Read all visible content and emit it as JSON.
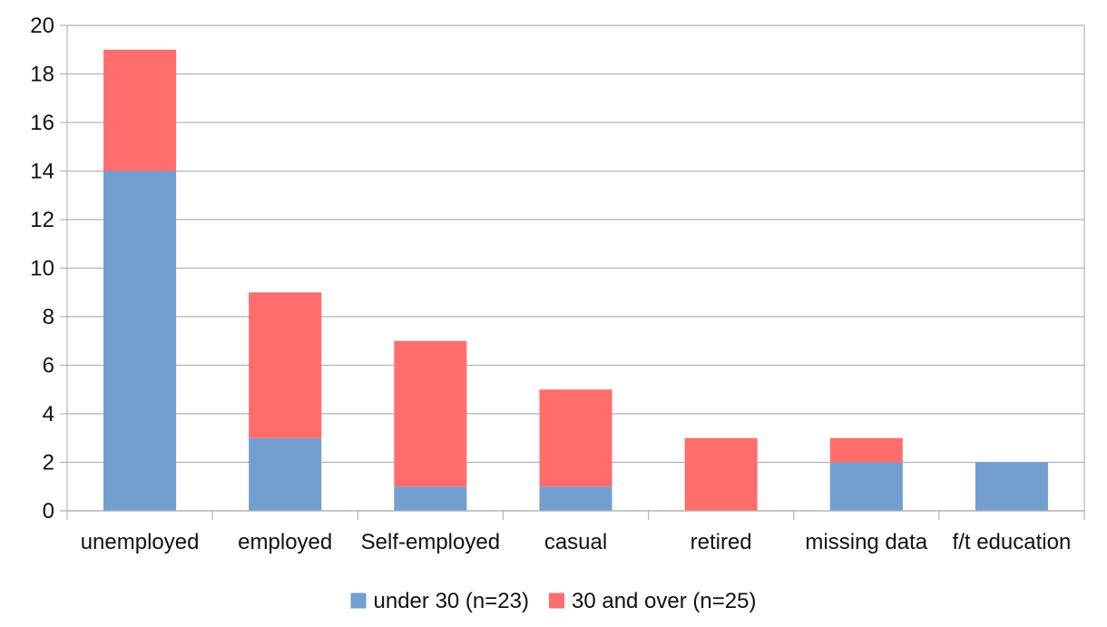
{
  "chart_data": {
    "type": "bar",
    "stacked": true,
    "categories": [
      "unemployed",
      "employed",
      "Self-employed",
      "casual",
      "retired",
      "missing data",
      "f/t education"
    ],
    "series": [
      {
        "name": "under 30 (n=23)",
        "values": [
          14,
          3,
          1,
          1,
          0,
          2,
          2
        ],
        "color": "#729fcf"
      },
      {
        "name": "30 and over (n=25)",
        "values": [
          5,
          6,
          6,
          4,
          3,
          1,
          0
        ],
        "color": "#ff6d6d"
      }
    ],
    "title": "",
    "xlabel": "",
    "ylabel": "",
    "ylim": [
      0,
      20
    ],
    "yticks": [
      0,
      2,
      4,
      6,
      8,
      10,
      12,
      14,
      16,
      18,
      20
    ],
    "grid": true,
    "legend": "bottom",
    "colors": {
      "grid": "#b3b3b3",
      "axis": "#b3b3b3"
    }
  }
}
